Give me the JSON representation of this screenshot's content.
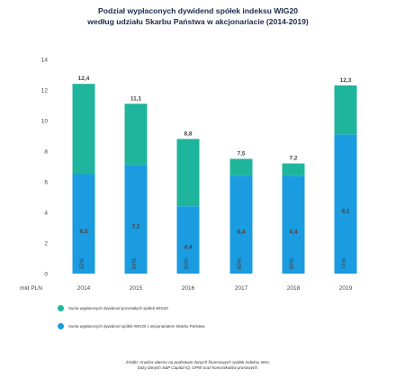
{
  "title_lines": [
    "Podział wypłaconych dywidend spółek indeksu WIG20",
    "według udziału Skarbu Państwa w akcjonariacie (2014-2019)"
  ],
  "legend": [
    {
      "label": "Suma wypłaconych dywidend pozostałych spółek WIG20",
      "color": "#1fb59c"
    },
    {
      "label": "Suma wypłaconych dywidend spółek WIG20 z akcjonariatem Skarbu Państwa",
      "color": "#1b9be0"
    }
  ],
  "source_lines": [
    "Źródło: Analiza własna na podstawie danych finansowych spółek indeksu WIG,",
    "bazy danych S&P Capital IQ, GPW oraz komunikatów prasowych."
  ],
  "chart_data": {
    "type": "bar",
    "stacked": true,
    "unit_label": "mld PLN",
    "categories": [
      "2014",
      "2015",
      "2016",
      "2017",
      "2018",
      "2019"
    ],
    "ylim": [
      0,
      14
    ],
    "yticks": [
      0,
      2,
      4,
      6,
      8,
      10,
      12,
      14
    ],
    "grid": false,
    "totals": [
      "12,4",
      "11,1",
      "8,8",
      "7,5",
      "7,2",
      "12,3"
    ],
    "series": [
      {
        "name": "Suma wypłaconych dywidend spółek WIG20 z akcjonariatem Skarbu Państwa",
        "values": [
          6.5,
          7.1,
          4.4,
          6.4,
          6.4,
          9.1
        ],
        "labels": [
          "6,5",
          "7,1",
          "4,4",
          "6,4",
          "6,4",
          "9,1"
        ],
        "share_labels": [
          "52%",
          "64%",
          "50%",
          "85%",
          "89%",
          "74%"
        ],
        "color": "#1b9be0"
      },
      {
        "name": "Suma wypłaconych dywidend pozostałych spółek WIG20",
        "values": [
          5.9,
          4.0,
          4.4,
          1.1,
          0.8,
          3.2
        ],
        "color": "#1fb59c"
      }
    ]
  }
}
